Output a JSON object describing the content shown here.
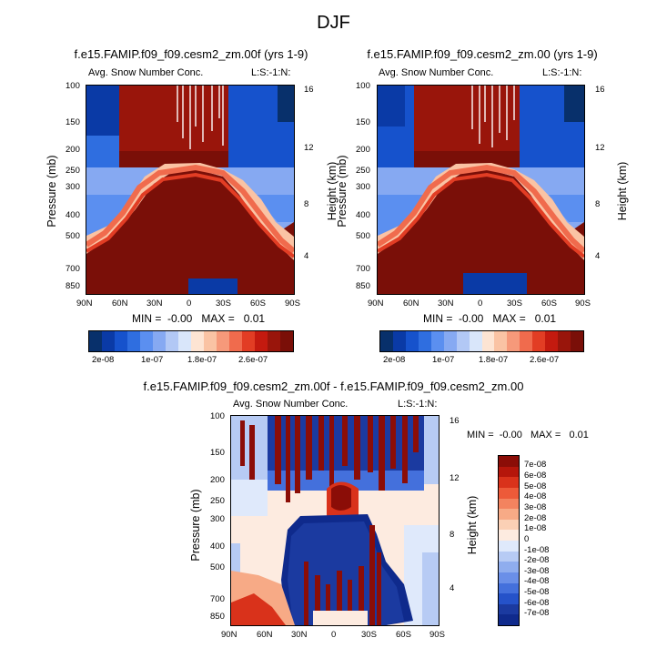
{
  "title": "DJF",
  "chart_data": [
    {
      "type": "heatmap",
      "title": "f.e15.FAMIP.f09_f09.cesm2_zm.00f (yrs 1-9)",
      "left_label": "Avg. Snow Number Conc.",
      "right_label": "L:S:-1:N:",
      "ylabel": "Pressure (mb)",
      "y2label": "Height (km)",
      "x_ticks": [
        "90N",
        "60N",
        "30N",
        "0",
        "30S",
        "60S",
        "90S"
      ],
      "y_ticks": [
        "100",
        "150",
        "200",
        "250",
        "300",
        "400",
        "500",
        "700",
        "850"
      ],
      "y2_ticks": [
        "16",
        "12",
        "8",
        "4"
      ],
      "stats": "MIN =  -0.00   MAX =   0.01",
      "colorbar_labels": [
        "2e-08",
        "1e-07",
        "1.8e-07",
        "2.6e-07"
      ]
    },
    {
      "type": "heatmap",
      "title": "f.e15.FAMIP.f09_f09.cesm2_zm.00 (yrs 1-9)",
      "left_label": "Avg. Snow Number Conc.",
      "right_label": "L:S:-1:N:",
      "ylabel": "Pressure (mb)",
      "y2label": "Height (km)",
      "x_ticks": [
        "90N",
        "60N",
        "30N",
        "0",
        "30S",
        "60S",
        "90S"
      ],
      "y_ticks": [
        "100",
        "150",
        "200",
        "250",
        "300",
        "400",
        "500",
        "700",
        "850"
      ],
      "y2_ticks": [
        "16",
        "12",
        "8",
        "4"
      ],
      "stats": "MIN =  -0.00   MAX =   0.01",
      "colorbar_labels": [
        "2e-08",
        "1e-07",
        "1.8e-07",
        "2.6e-07"
      ]
    },
    {
      "type": "heatmap",
      "title": "f.e15.FAMIP.f09_f09.cesm2_zm.00f - f.e15.FAMIP.f09_f09.cesm2_zm.00",
      "left_label": "Avg. Snow Number Conc.",
      "right_label": "L:S:-1:N:",
      "ylabel": "Pressure (mb)",
      "y2label": "Height (km)",
      "x_ticks": [
        "90N",
        "60N",
        "30N",
        "0",
        "30S",
        "60S",
        "90S"
      ],
      "y_ticks": [
        "100",
        "150",
        "200",
        "250",
        "300",
        "400",
        "500",
        "700",
        "850"
      ],
      "y2_ticks": [
        "16",
        "12",
        "8",
        "4"
      ],
      "stats": "MIN =  -0.00   MAX =   0.01",
      "colorbar_labels": [
        "7e-08",
        "6e-08",
        "5e-08",
        "4e-08",
        "3e-08",
        "2e-08",
        "1e-08",
        "0",
        "-1e-08",
        "-2e-08",
        "-3e-08",
        "-4e-08",
        "-5e-08",
        "-6e-08",
        "-7e-08"
      ]
    }
  ],
  "colors": {
    "seq": [
      "#08306b",
      "#0a3aa6",
      "#1652cc",
      "#2f6ee0",
      "#5b8ff0",
      "#86a9f2",
      "#b2c8f5",
      "#d9e6fa",
      "#fde4d3",
      "#fac3a4",
      "#f6997a",
      "#f06b4d",
      "#e23d24",
      "#c41a0f",
      "#99150b",
      "#7a0f08"
    ],
    "div": [
      "#8b0d07",
      "#b5160b",
      "#d9321b",
      "#ed5a39",
      "#f3835f",
      "#f7aa86",
      "#fbd0b5",
      "#fdebe0",
      "#dfe9fb",
      "#b7cbf4",
      "#8fadee",
      "#6a8fe8",
      "#4470dc",
      "#2552c9",
      "#1b3aa0",
      "#0f2a8c"
    ]
  }
}
